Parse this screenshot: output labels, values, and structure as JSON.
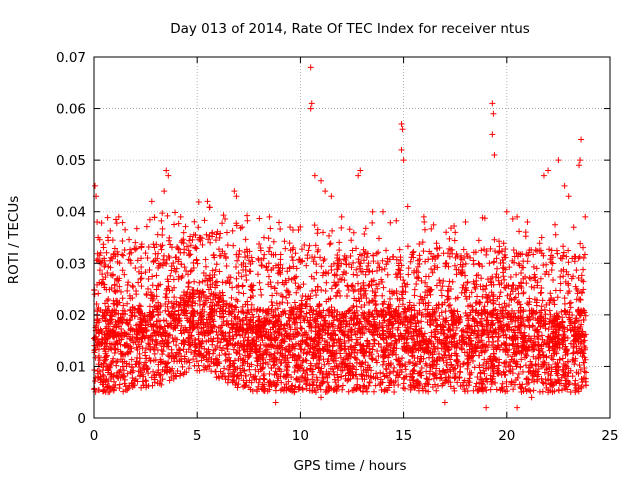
{
  "chart_data": {
    "type": "scatter",
    "title": "Day 013 of 2014, Rate Of TEC Index for receiver ntus",
    "xlabel": "GPS time / hours",
    "ylabel": "ROTI / TECUs",
    "xlim": [
      0,
      25
    ],
    "ylim": [
      0,
      0.07
    ],
    "xticks": [
      0,
      5,
      10,
      15,
      20,
      25
    ],
    "xtick_labels": [
      "0",
      "5",
      "10",
      "15",
      "20",
      "25"
    ],
    "yticks": [
      0,
      0.01,
      0.02,
      0.03,
      0.04,
      0.05,
      0.06,
      0.07
    ],
    "ytick_labels": [
      "0",
      "0.01",
      "0.02",
      "0.03",
      "0.04",
      "0.05",
      "0.06",
      "0.07"
    ],
    "grid": true,
    "marker": "+",
    "color": "#ff0000",
    "series": [
      {
        "name": "ROTI",
        "note": "dense scatter; representative sample of points",
        "points": [
          [
            0.05,
            0.045
          ],
          [
            0.1,
            0.043
          ],
          [
            0.15,
            0.038
          ],
          [
            0.2,
            0.035
          ],
          [
            0.3,
            0.03
          ],
          [
            10.5,
            0.068
          ],
          [
            10.5,
            0.06
          ],
          [
            10.55,
            0.061
          ],
          [
            14.9,
            0.057
          ],
          [
            14.95,
            0.056
          ],
          [
            14.9,
            0.052
          ],
          [
            15.0,
            0.05
          ],
          [
            19.3,
            0.061
          ],
          [
            19.35,
            0.059
          ],
          [
            19.3,
            0.055
          ],
          [
            19.4,
            0.051
          ],
          [
            23.6,
            0.054
          ],
          [
            23.55,
            0.05
          ],
          [
            23.5,
            0.049
          ],
          [
            22.0,
            0.048
          ],
          [
            22.5,
            0.05
          ],
          [
            22.8,
            0.045
          ],
          [
            21.8,
            0.047
          ],
          [
            3.5,
            0.048
          ],
          [
            3.6,
            0.047
          ],
          [
            3.4,
            0.044
          ],
          [
            5.5,
            0.042
          ],
          [
            6.8,
            0.044
          ],
          [
            6.9,
            0.043
          ],
          [
            12.9,
            0.048
          ],
          [
            12.8,
            0.047
          ],
          [
            10.7,
            0.047
          ],
          [
            11.0,
            0.046
          ],
          [
            11.2,
            0.044
          ],
          [
            11.5,
            0.043
          ],
          [
            13.5,
            0.04
          ],
          [
            14.0,
            0.04
          ],
          [
            15.2,
            0.041
          ],
          [
            16.0,
            0.038
          ],
          [
            17.5,
            0.036
          ],
          [
            18.0,
            0.038
          ],
          [
            20.0,
            0.04
          ],
          [
            20.5,
            0.039
          ],
          [
            21.0,
            0.038
          ],
          [
            23.0,
            0.043
          ],
          [
            23.8,
            0.039
          ],
          [
            1.2,
            0.039
          ],
          [
            2.0,
            0.034
          ],
          [
            2.8,
            0.042
          ],
          [
            4.2,
            0.039
          ],
          [
            8.5,
            0.039
          ],
          [
            9.5,
            0.037
          ],
          [
            12.0,
            0.039
          ],
          [
            8.8,
            0.003
          ],
          [
            9.7,
            0.005
          ],
          [
            11.0,
            0.004
          ],
          [
            17.0,
            0.003
          ],
          [
            19.0,
            0.002
          ],
          [
            20.5,
            0.002
          ],
          [
            21.2,
            0.004
          ],
          [
            22.0,
            0.005
          ]
        ]
      }
    ]
  }
}
